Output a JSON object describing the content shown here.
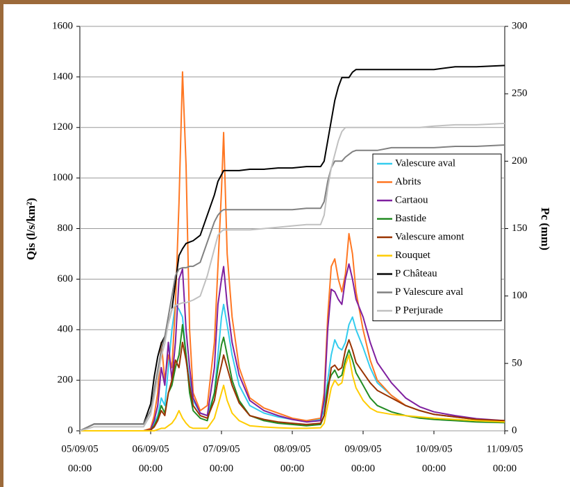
{
  "chart_data": {
    "type": "line",
    "y_label": "Qis (l/s/km²)",
    "y2_label": "Pc (mm)",
    "x": [
      0,
      0.2,
      0.5,
      0.9,
      1.0,
      1.05,
      1.1,
      1.15,
      1.2,
      1.25,
      1.3,
      1.35,
      1.4,
      1.45,
      1.5,
      1.55,
      1.6,
      1.7,
      1.8,
      1.9,
      1.95,
      2.0,
      2.03,
      2.08,
      2.15,
      2.25,
      2.4,
      2.6,
      2.8,
      3.0,
      3.2,
      3.4,
      3.45,
      3.5,
      3.55,
      3.6,
      3.65,
      3.7,
      3.75,
      3.8,
      3.85,
      3.9,
      4.0,
      4.1,
      4.2,
      4.4,
      4.6,
      4.8,
      5.0,
      5.3,
      5.6,
      6.0
    ],
    "xlim": [
      0,
      6
    ],
    "xticks": [
      {
        "value": 0,
        "label": [
          "05/09/05",
          "00:00"
        ]
      },
      {
        "value": 1,
        "label": [
          "06/09/05",
          "00:00"
        ]
      },
      {
        "value": 2,
        "label": [
          "07/09/05",
          "00:00"
        ]
      },
      {
        "value": 3,
        "label": [
          "08/09/05",
          "00:00"
        ]
      },
      {
        "value": 4,
        "label": [
          "09/09/05",
          "00:00"
        ]
      },
      {
        "value": 5,
        "label": [
          "10/09/05",
          "00:00"
        ]
      },
      {
        "value": 6,
        "label": [
          "11/09/05",
          "00:00"
        ]
      }
    ],
    "ylim": [
      0,
      1600
    ],
    "yticks": [
      0,
      200,
      400,
      600,
      800,
      1000,
      1200,
      1400,
      1600
    ],
    "y2lim": [
      0,
      300
    ],
    "y2ticks": [
      0,
      50,
      100,
      150,
      200,
      250,
      300
    ],
    "grid": true,
    "legend": "right",
    "series": [
      {
        "name": "Valescure aval",
        "color": "#33ccee",
        "values": [
          0,
          0,
          0,
          0,
          5,
          30,
          60,
          130,
          100,
          250,
          400,
          500,
          480,
          450,
          300,
          200,
          120,
          70,
          60,
          150,
          300,
          450,
          500,
          420,
          300,
          180,
          100,
          70,
          55,
          45,
          40,
          45,
          80,
          200,
          300,
          360,
          330,
          320,
          350,
          420,
          450,
          400,
          330,
          250,
          190,
          140,
          100,
          80,
          65,
          55,
          45,
          38
        ]
      },
      {
        "name": "Abrits",
        "color": "#ff7722",
        "values": [
          0,
          0,
          0,
          0,
          10,
          60,
          150,
          350,
          200,
          300,
          250,
          500,
          900,
          1420,
          1050,
          400,
          150,
          80,
          100,
          350,
          650,
          950,
          1180,
          700,
          450,
          250,
          130,
          90,
          70,
          50,
          40,
          50,
          150,
          450,
          650,
          680,
          600,
          550,
          620,
          780,
          700,
          550,
          400,
          280,
          200,
          140,
          100,
          80,
          65,
          55,
          45,
          35
        ]
      },
      {
        "name": "Cartaou",
        "color": "#7f1f9f",
        "values": [
          0,
          0,
          0,
          0,
          5,
          40,
          100,
          250,
          180,
          350,
          200,
          350,
          600,
          640,
          400,
          250,
          130,
          70,
          60,
          250,
          500,
          600,
          650,
          500,
          350,
          220,
          120,
          80,
          60,
          45,
          35,
          40,
          120,
          400,
          560,
          550,
          520,
          500,
          600,
          660,
          600,
          520,
          450,
          350,
          270,
          190,
          130,
          95,
          75,
          60,
          48,
          40
        ]
      },
      {
        "name": "Bastide",
        "color": "#228b22",
        "values": [
          0,
          0,
          0,
          0,
          3,
          20,
          50,
          100,
          70,
          150,
          180,
          250,
          300,
          420,
          300,
          150,
          80,
          50,
          40,
          150,
          250,
          340,
          370,
          300,
          200,
          120,
          60,
          40,
          30,
          25,
          20,
          25,
          60,
          180,
          220,
          240,
          210,
          220,
          280,
          320,
          280,
          230,
          180,
          130,
          100,
          75,
          60,
          50,
          45,
          40,
          35,
          32
        ]
      },
      {
        "name": "Valescure amont",
        "color": "#993300",
        "values": [
          0,
          0,
          0,
          0,
          3,
          15,
          40,
          80,
          60,
          150,
          200,
          280,
          250,
          350,
          280,
          180,
          100,
          60,
          50,
          120,
          200,
          260,
          300,
          250,
          180,
          110,
          60,
          45,
          35,
          30,
          25,
          30,
          60,
          150,
          250,
          260,
          240,
          250,
          320,
          360,
          320,
          270,
          230,
          190,
          160,
          130,
          100,
          80,
          65,
          55,
          45,
          40
        ]
      },
      {
        "name": "Rouquet",
        "color": "#ffcc00",
        "values": [
          0,
          0,
          0,
          0,
          0,
          0,
          5,
          10,
          10,
          20,
          30,
          50,
          80,
          50,
          30,
          15,
          10,
          10,
          10,
          50,
          100,
          150,
          180,
          120,
          70,
          40,
          20,
          15,
          12,
          10,
          10,
          12,
          30,
          100,
          170,
          200,
          180,
          190,
          260,
          300,
          220,
          170,
          120,
          90,
          75,
          65,
          60,
          55,
          50,
          45,
          40,
          35
        ]
      },
      {
        "name": "P Château",
        "color": "#000000",
        "axis": "y2",
        "values": [
          0,
          5,
          5,
          5,
          20,
          40,
          55,
          65,
          70,
          80,
          90,
          110,
          130,
          135,
          139,
          140,
          141,
          145,
          160,
          175,
          185,
          190,
          193,
          193,
          193,
          193,
          194,
          194,
          195,
          195,
          196,
          196,
          200,
          215,
          230,
          245,
          255,
          262,
          262,
          262,
          266,
          268,
          268,
          268,
          268,
          268,
          268,
          268,
          268,
          270,
          270,
          271
        ]
      },
      {
        "name": "P Valescure aval",
        "color": "#808080",
        "axis": "y2",
        "values": [
          0,
          5,
          5,
          5,
          15,
          30,
          45,
          60,
          70,
          85,
          100,
          115,
          120,
          121,
          121,
          122,
          122,
          125,
          140,
          155,
          160,
          163,
          164,
          164,
          164,
          164,
          164,
          164,
          164,
          164,
          165,
          165,
          170,
          185,
          195,
          200,
          200,
          200,
          203,
          205,
          207,
          208,
          208,
          208,
          208,
          210,
          210,
          210,
          210,
          211,
          211,
          212
        ]
      },
      {
        "name": "P Perjurade",
        "color": "#c0c0c0",
        "axis": "y2",
        "values": [
          0,
          3,
          3,
          3,
          12,
          25,
          40,
          55,
          65,
          80,
          90,
          93,
          94,
          95,
          95,
          96,
          97,
          100,
          115,
          135,
          145,
          148,
          149,
          149,
          149,
          149,
          149,
          150,
          151,
          152,
          153,
          153,
          160,
          180,
          195,
          205,
          215,
          222,
          225,
          225,
          225,
          225,
          225,
          225,
          225,
          225,
          225,
          225,
          226,
          227,
          227,
          228
        ]
      }
    ]
  }
}
